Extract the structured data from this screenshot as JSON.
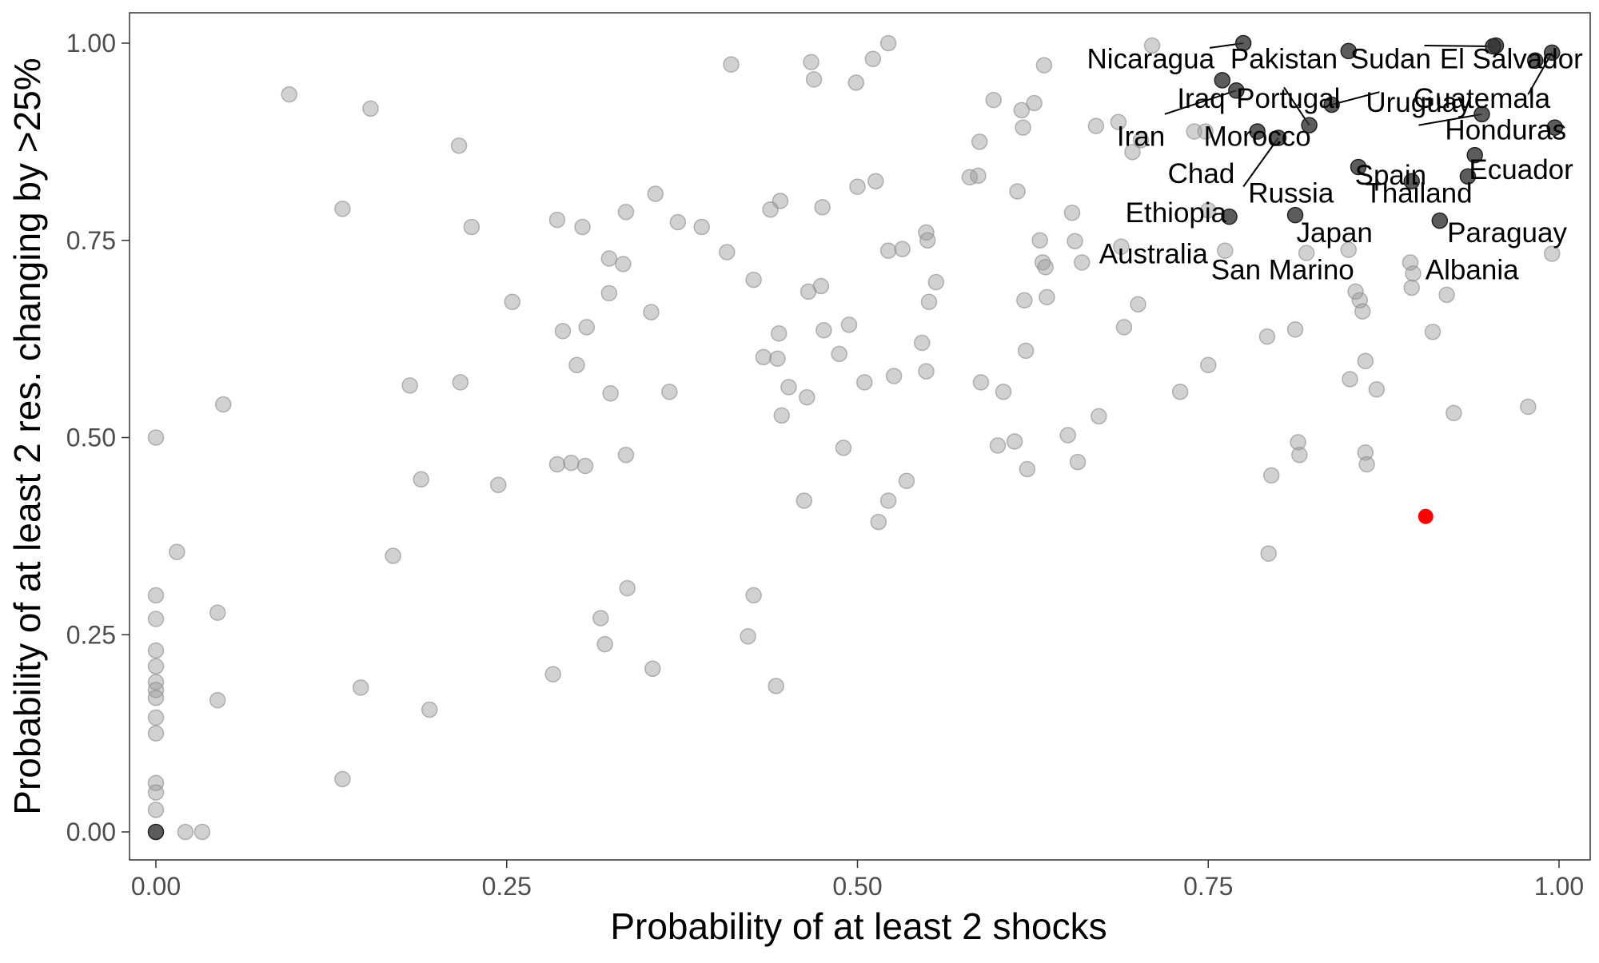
{
  "chart_data": {
    "type": "scatter",
    "title": "",
    "xlabel": "Probability of at least 2 shocks",
    "ylabel": "Probability of at least 2 res. changing by >25%",
    "xlim": [
      0,
      1
    ],
    "ylim": [
      0,
      1
    ],
    "x_ticks": [
      {
        "value": 0,
        "label": "0.00"
      },
      {
        "value": 0.25,
        "label": "0.25"
      },
      {
        "value": 0.5,
        "label": "0.50"
      },
      {
        "value": 0.75,
        "label": "0.75"
      },
      {
        "value": 1,
        "label": "1.00"
      }
    ],
    "y_ticks": [
      {
        "value": 0,
        "label": "0.00"
      },
      {
        "value": 0.25,
        "label": "0.25"
      },
      {
        "value": 0.5,
        "label": "0.50"
      },
      {
        "value": 0.75,
        "label": "0.75"
      },
      {
        "value": 1,
        "label": "1.00"
      }
    ],
    "grid": false,
    "colors": {
      "other": "#999999",
      "highlighted": "#333333",
      "focus": "#ff0000",
      "label": "#000000"
    },
    "focus_point": {
      "x": 0.905,
      "y": 0.4
    },
    "highlighted": [
      {
        "name": "Nicaragua",
        "x": 0.775,
        "y": 1.0
      },
      {
        "name": "Pakistan",
        "x": 0.85,
        "y": 0.99
      },
      {
        "name": "Sudan",
        "x": 0.955,
        "y": 0.997
      },
      {
        "name": "El Salvador",
        "x": 0.953,
        "y": 0.996
      },
      {
        "name": "Iraq",
        "x": 0.76,
        "y": 0.953
      },
      {
        "name": "Portugal",
        "x": 0.822,
        "y": 0.896
      },
      {
        "name": "Uruguay",
        "x": 0.838,
        "y": 0.922
      },
      {
        "name": "Guatemala",
        "x": 0.995,
        "y": 0.988
      },
      {
        "name": "Iran",
        "x": 0.77,
        "y": 0.94
      },
      {
        "name": "Morocco",
        "x": 0.785,
        "y": 0.888
      },
      {
        "name": "Honduras",
        "x": 0.983,
        "y": 0.978
      },
      {
        "name": "Spain",
        "x": 0.945,
        "y": 0.91
      },
      {
        "name": "Chad",
        "x": 0.8,
        "y": 0.88
      },
      {
        "name": "Ecuador",
        "x": 0.997,
        "y": 0.893
      },
      {
        "name": "Russia",
        "x": 0.94,
        "y": 0.858
      },
      {
        "name": "Thailand",
        "x": 0.857,
        "y": 0.843
      },
      {
        "name": "Ethiopia",
        "x": 0.895,
        "y": 0.825
      },
      {
        "name": "Japan",
        "x": 0.935,
        "y": 0.831
      },
      {
        "name": "Paraguay",
        "x": 0.915,
        "y": 0.775
      },
      {
        "name": "Australia",
        "x": 0.765,
        "y": 0.78
      },
      {
        "name": "San Marino",
        "x": 0.812,
        "y": 0.782
      },
      {
        "name": "Albania",
        "x": 0.0,
        "y": 0.0
      }
    ],
    "labels": [
      {
        "text": "Nicaragua",
        "x": 0.709,
        "y": 0.98
      },
      {
        "text": "Pakistan",
        "x": 0.804,
        "y": 0.98
      },
      {
        "text": "Sudan",
        "x": 0.88,
        "y": 0.98
      },
      {
        "text": "El Salvador",
        "x": 0.966,
        "y": 0.98
      },
      {
        "text": "Iraq",
        "x": 0.745,
        "y": 0.93
      },
      {
        "text": "Portugal",
        "x": 0.807,
        "y": 0.93
      },
      {
        "text": "Uruguay",
        "x": 0.9,
        "y": 0.925
      },
      {
        "text": "Guatemala",
        "x": 0.945,
        "y": 0.93
      },
      {
        "text": "Iran",
        "x": 0.702,
        "y": 0.882
      },
      {
        "text": "Morocco",
        "x": 0.785,
        "y": 0.882
      },
      {
        "text": "Honduras",
        "x": 0.962,
        "y": 0.89
      },
      {
        "text": "Spain",
        "x": 0.88,
        "y": 0.833
      },
      {
        "text": "Chad",
        "x": 0.745,
        "y": 0.835
      },
      {
        "text": "Ecuador",
        "x": 0.973,
        "y": 0.84
      },
      {
        "text": "Russia",
        "x": 0.809,
        "y": 0.81
      },
      {
        "text": "Thailand",
        "x": 0.9,
        "y": 0.81
      },
      {
        "text": "Ethiopia",
        "x": 0.727,
        "y": 0.785
      },
      {
        "text": "Japan",
        "x": 0.84,
        "y": 0.76
      },
      {
        "text": "Paraguay",
        "x": 0.963,
        "y": 0.76
      },
      {
        "text": "Australia",
        "x": 0.711,
        "y": 0.733
      },
      {
        "text": "San Marino",
        "x": 0.803,
        "y": 0.713
      },
      {
        "text": "Albania",
        "x": 0.938,
        "y": 0.713
      }
    ],
    "label_leaders": [
      {
        "from": [
          0.751,
          0.994
        ],
        "to": [
          0.775,
          1.0
        ]
      },
      {
        "from": [
          0.904,
          0.997
        ],
        "to": [
          0.953,
          0.996
        ]
      },
      {
        "from": [
          0.719,
          0.91
        ],
        "to": [
          0.77,
          0.94
        ]
      },
      {
        "from": [
          0.804,
          0.944
        ],
        "to": [
          0.822,
          0.896
        ]
      },
      {
        "from": [
          0.872,
          0.938
        ],
        "to": [
          0.838,
          0.922
        ]
      },
      {
        "from": [
          0.978,
          0.935
        ],
        "to": [
          0.995,
          0.988
        ]
      },
      {
        "from": [
          0.9,
          0.896
        ],
        "to": [
          0.945,
          0.91
        ]
      },
      {
        "from": [
          0.775,
          0.818
        ],
        "to": [
          0.8,
          0.88
        ]
      }
    ],
    "points": [
      [
        0.0,
        0.5
      ],
      [
        0.0,
        0.3
      ],
      [
        0.0,
        0.27
      ],
      [
        0.0,
        0.23
      ],
      [
        0.0,
        0.21
      ],
      [
        0.0,
        0.19
      ],
      [
        0.0,
        0.18
      ],
      [
        0.0,
        0.17
      ],
      [
        0.0,
        0.145
      ],
      [
        0.0,
        0.125
      ],
      [
        0.0,
        0.062
      ],
      [
        0.0,
        0.05
      ],
      [
        0.0,
        0.028
      ],
      [
        0.021,
        0.0
      ],
      [
        0.033,
        0.0
      ],
      [
        0.015,
        0.355
      ],
      [
        0.044,
        0.278
      ],
      [
        0.044,
        0.167
      ],
      [
        0.048,
        0.542
      ],
      [
        0.095,
        0.935
      ],
      [
        0.133,
        0.79
      ],
      [
        0.133,
        0.067
      ],
      [
        0.146,
        0.183
      ],
      [
        0.153,
        0.917
      ],
      [
        0.169,
        0.35
      ],
      [
        0.181,
        0.566
      ],
      [
        0.189,
        0.447
      ],
      [
        0.195,
        0.155
      ],
      [
        0.216,
        0.87
      ],
      [
        0.217,
        0.57
      ],
      [
        0.225,
        0.767
      ],
      [
        0.244,
        0.44
      ],
      [
        0.254,
        0.672
      ],
      [
        0.283,
        0.2
      ],
      [
        0.286,
        0.466
      ],
      [
        0.286,
        0.776
      ],
      [
        0.29,
        0.635
      ],
      [
        0.296,
        0.468
      ],
      [
        0.3,
        0.592
      ],
      [
        0.304,
        0.767
      ],
      [
        0.306,
        0.464
      ],
      [
        0.307,
        0.64
      ],
      [
        0.317,
        0.271
      ],
      [
        0.32,
        0.238
      ],
      [
        0.323,
        0.727
      ],
      [
        0.323,
        0.683
      ],
      [
        0.324,
        0.556
      ],
      [
        0.333,
        0.72
      ],
      [
        0.335,
        0.786
      ],
      [
        0.335,
        0.478
      ],
      [
        0.336,
        0.309
      ],
      [
        0.353,
        0.659
      ],
      [
        0.354,
        0.207
      ],
      [
        0.356,
        0.809
      ],
      [
        0.366,
        0.558
      ],
      [
        0.372,
        0.773
      ],
      [
        0.389,
        0.767
      ],
      [
        0.407,
        0.735
      ],
      [
        0.41,
        0.973
      ],
      [
        0.422,
        0.248
      ],
      [
        0.426,
        0.7
      ],
      [
        0.426,
        0.3
      ],
      [
        0.433,
        0.602
      ],
      [
        0.438,
        0.789
      ],
      [
        0.442,
        0.185
      ],
      [
        0.443,
        0.6
      ],
      [
        0.444,
        0.632
      ],
      [
        0.445,
        0.8
      ],
      [
        0.446,
        0.528
      ],
      [
        0.451,
        0.564
      ],
      [
        0.462,
        0.42
      ],
      [
        0.464,
        0.551
      ],
      [
        0.465,
        0.685
      ],
      [
        0.467,
        0.976
      ],
      [
        0.469,
        0.954
      ],
      [
        0.474,
        0.692
      ],
      [
        0.475,
        0.792
      ],
      [
        0.476,
        0.636
      ],
      [
        0.487,
        0.606
      ],
      [
        0.49,
        0.487
      ],
      [
        0.494,
        0.643
      ],
      [
        0.499,
        0.95
      ],
      [
        0.5,
        0.818
      ],
      [
        0.505,
        0.57
      ],
      [
        0.511,
        0.98
      ],
      [
        0.513,
        0.825
      ],
      [
        0.515,
        0.393
      ],
      [
        0.522,
        1.0
      ],
      [
        0.522,
        0.42
      ],
      [
        0.522,
        0.737
      ],
      [
        0.526,
        0.578
      ],
      [
        0.532,
        0.739
      ],
      [
        0.535,
        0.445
      ],
      [
        0.546,
        0.62
      ],
      [
        0.549,
        0.584
      ],
      [
        0.549,
        0.76
      ],
      [
        0.55,
        0.75
      ],
      [
        0.551,
        0.672
      ],
      [
        0.556,
        0.697
      ],
      [
        0.58,
        0.83
      ],
      [
        0.586,
        0.832
      ],
      [
        0.587,
        0.875
      ],
      [
        0.588,
        0.57
      ],
      [
        0.597,
        0.928
      ],
      [
        0.6,
        0.49
      ],
      [
        0.604,
        0.558
      ],
      [
        0.612,
        0.495
      ],
      [
        0.614,
        0.812
      ],
      [
        0.617,
        0.915
      ],
      [
        0.618,
        0.893
      ],
      [
        0.619,
        0.674
      ],
      [
        0.62,
        0.61
      ],
      [
        0.621,
        0.46
      ],
      [
        0.626,
        0.924
      ],
      [
        0.63,
        0.75
      ],
      [
        0.632,
        0.722
      ],
      [
        0.633,
        0.972
      ],
      [
        0.634,
        0.716
      ],
      [
        0.635,
        0.678
      ],
      [
        0.65,
        0.503
      ],
      [
        0.653,
        0.785
      ],
      [
        0.655,
        0.749
      ],
      [
        0.657,
        0.469
      ],
      [
        0.66,
        0.722
      ],
      [
        0.67,
        0.895
      ],
      [
        0.672,
        0.527
      ],
      [
        0.686,
        0.9
      ],
      [
        0.688,
        0.742
      ],
      [
        0.69,
        0.64
      ],
      [
        0.696,
        0.862
      ],
      [
        0.7,
        0.669
      ],
      [
        0.702,
        0.877
      ],
      [
        0.71,
        0.997
      ],
      [
        0.73,
        0.558
      ],
      [
        0.74,
        0.888
      ],
      [
        0.748,
        0.888
      ],
      [
        0.75,
        0.592
      ],
      [
        0.75,
        0.788
      ],
      [
        0.762,
        0.737
      ],
      [
        0.792,
        0.628
      ],
      [
        0.793,
        0.353
      ],
      [
        0.795,
        0.452
      ],
      [
        0.812,
        0.637
      ],
      [
        0.814,
        0.494
      ],
      [
        0.815,
        0.478
      ],
      [
        0.82,
        0.734
      ],
      [
        0.85,
        0.738
      ],
      [
        0.851,
        0.574
      ],
      [
        0.855,
        0.685
      ],
      [
        0.858,
        0.674
      ],
      [
        0.86,
        0.66
      ],
      [
        0.862,
        0.481
      ],
      [
        0.862,
        0.597
      ],
      [
        0.863,
        0.466
      ],
      [
        0.87,
        0.561
      ],
      [
        0.894,
        0.722
      ],
      [
        0.895,
        0.69
      ],
      [
        0.896,
        0.708
      ],
      [
        0.91,
        0.634
      ],
      [
        0.92,
        0.681
      ],
      [
        0.925,
        0.531
      ],
      [
        0.978,
        0.539
      ],
      [
        0.995,
        0.733
      ]
    ]
  }
}
